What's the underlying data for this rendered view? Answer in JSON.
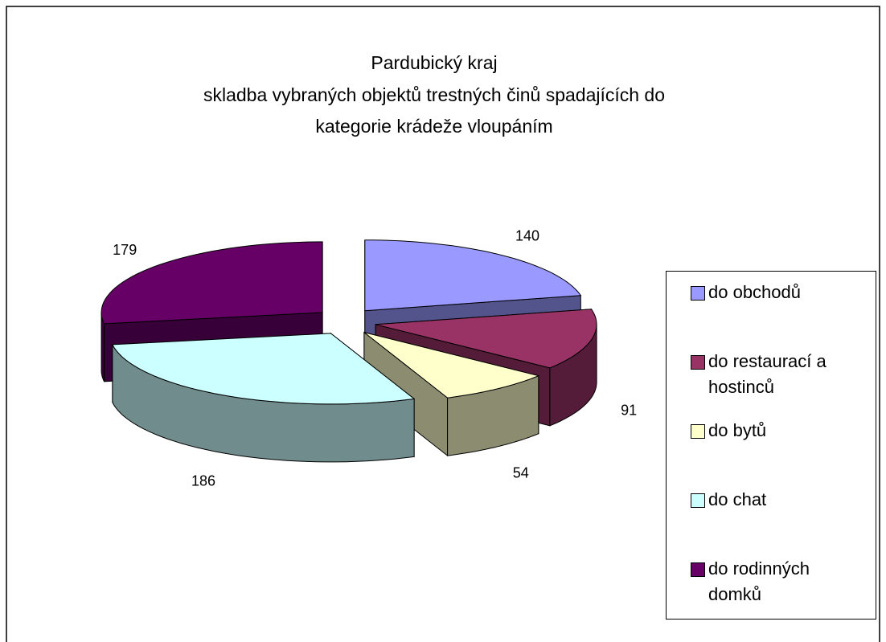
{
  "chart_data": {
    "type": "pie",
    "title": [
      "Pardubický  kraj",
      "skladba vybraných objektů trestných činů spadajících do",
      "kategorie krádeže vloupáním"
    ],
    "categories": [
      "do obchodů",
      "do restaurací a hostinců",
      "do bytů",
      "do chat",
      "do rodinných domků"
    ],
    "values": [
      140,
      91,
      54,
      186,
      179
    ],
    "colors": [
      "#9999ff",
      "#993366",
      "#ffffcc",
      "#ccffff",
      "#660066"
    ],
    "legend": "right"
  }
}
